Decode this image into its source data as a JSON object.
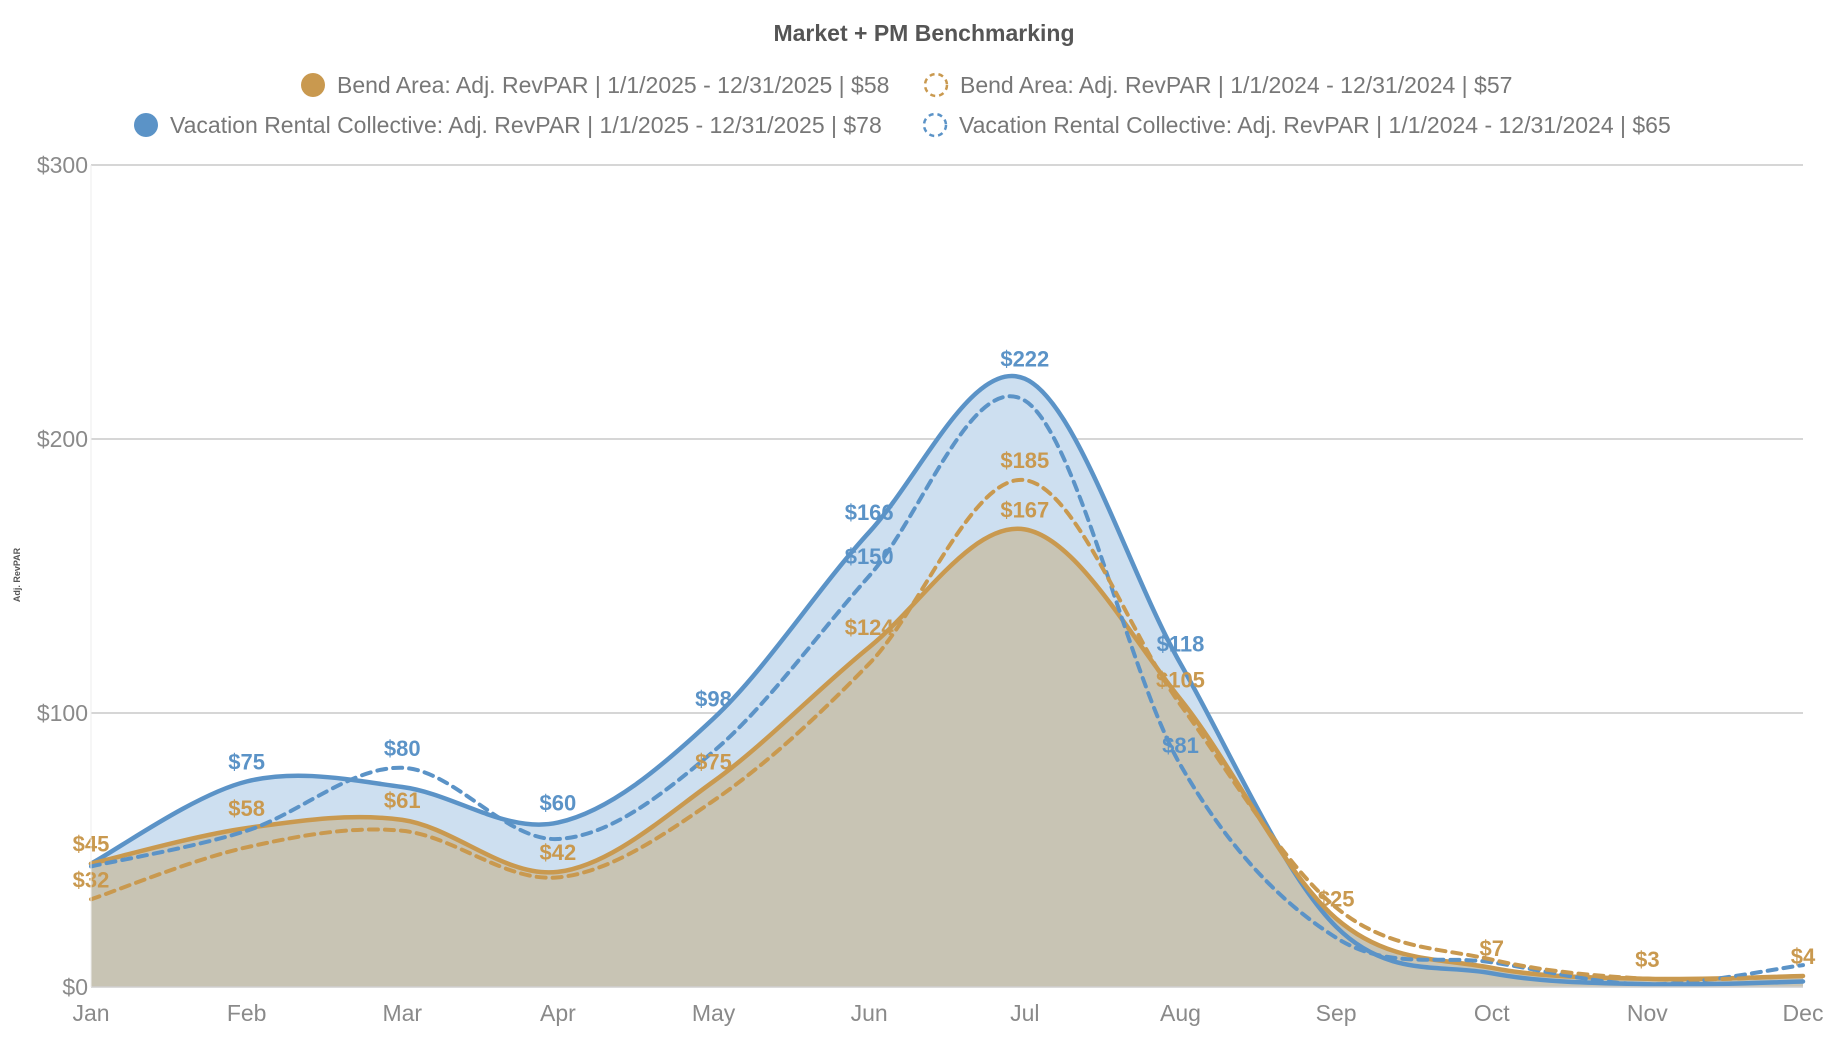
{
  "chart_data": {
    "type": "area",
    "title": "Market + PM Benchmarking",
    "ylabel": "Adj. RevPAR",
    "xlabel": "",
    "categories": [
      "Jan",
      "Feb",
      "Mar",
      "Apr",
      "May",
      "Jun",
      "Jul",
      "Aug",
      "Sep",
      "Oct",
      "Nov",
      "Dec"
    ],
    "ylim": [
      0,
      300
    ],
    "yticks": [
      0,
      100,
      200,
      300
    ],
    "ytick_labels": [
      "$0",
      "$100",
      "$200",
      "$300"
    ],
    "grid": true,
    "legend_position": "top-center",
    "series": [
      {
        "name": "Bend Area: Adj. RevPAR | 1/1/2025 - 12/31/2025 | $58",
        "color": "#c9994f",
        "style": "solid",
        "filled": true,
        "values": [
          45,
          58,
          61,
          42,
          75,
          124,
          167,
          105,
          25,
          7,
          3,
          4
        ]
      },
      {
        "name": "Bend Area: Adj. RevPAR | 1/1/2024 - 12/31/2024 | $57",
        "color": "#c9994f",
        "style": "dashed",
        "filled": false,
        "values": [
          32,
          51,
          57,
          40,
          68,
          118,
          185,
          103,
          29,
          10,
          3,
          4
        ]
      },
      {
        "name": "Vacation Rental Collective: Adj. RevPAR | 1/1/2025 - 12/31/2025 | $78",
        "color": "#5b93c7",
        "style": "solid",
        "filled": true,
        "values": [
          45,
          75,
          73,
          60,
          98,
          166,
          222,
          118,
          22,
          5,
          1,
          2
        ]
      },
      {
        "name": "Vacation Rental Collective: Adj. RevPAR | 1/1/2024 - 12/31/2024 | $65",
        "color": "#5b93c7",
        "style": "dashed",
        "filled": false,
        "values": [
          44,
          57,
          80,
          54,
          86,
          150,
          214,
          81,
          18,
          9,
          1,
          8
        ]
      }
    ],
    "data_labels": [
      {
        "month": "Jan",
        "text": "$45",
        "value": 45,
        "series": 0
      },
      {
        "month": "Jan",
        "text": "$32",
        "value": 32,
        "series": 1
      },
      {
        "month": "Feb",
        "text": "$75",
        "value": 75,
        "series": 2
      },
      {
        "month": "Feb",
        "text": "$58",
        "value": 58,
        "series": 0
      },
      {
        "month": "Mar",
        "text": "$80",
        "value": 80,
        "series": 3
      },
      {
        "month": "Mar",
        "text": "$61",
        "value": 61,
        "series": 0
      },
      {
        "month": "Apr",
        "text": "$60",
        "value": 60,
        "series": 2
      },
      {
        "month": "Apr",
        "text": "$42",
        "value": 42,
        "series": 0
      },
      {
        "month": "May",
        "text": "$98",
        "value": 98,
        "series": 2
      },
      {
        "month": "May",
        "text": "$75",
        "value": 75,
        "series": 0
      },
      {
        "month": "Jun",
        "text": "$166",
        "value": 166,
        "series": 2
      },
      {
        "month": "Jun",
        "text": "$150",
        "value": 150,
        "series": 3
      },
      {
        "month": "Jun",
        "text": "$124",
        "value": 124,
        "series": 0
      },
      {
        "month": "Jul",
        "text": "$222",
        "value": 222,
        "series": 2
      },
      {
        "month": "Jul",
        "text": "$185",
        "value": 185,
        "series": 1
      },
      {
        "month": "Jul",
        "text": "$167",
        "value": 167,
        "series": 0
      },
      {
        "month": "Aug",
        "text": "$118",
        "value": 118,
        "series": 2
      },
      {
        "month": "Aug",
        "text": "$105",
        "value": 105,
        "series": 0
      },
      {
        "month": "Aug",
        "text": "$81",
        "value": 81,
        "series": 3
      },
      {
        "month": "Sep",
        "text": "$25",
        "value": 25,
        "series": 0
      },
      {
        "month": "Oct",
        "text": "$7",
        "value": 7,
        "series": 0
      },
      {
        "month": "Nov",
        "text": "$3",
        "value": 3,
        "series": 0
      },
      {
        "month": "Dec",
        "text": "$4",
        "value": 4,
        "series": 0
      }
    ],
    "colors": {
      "bend": "#c9994f",
      "vrc": "#5b93c7",
      "bend_fill": "#c8c4b4",
      "vrc_fill": "#cddff0",
      "grid": "#c8c8c8"
    }
  }
}
